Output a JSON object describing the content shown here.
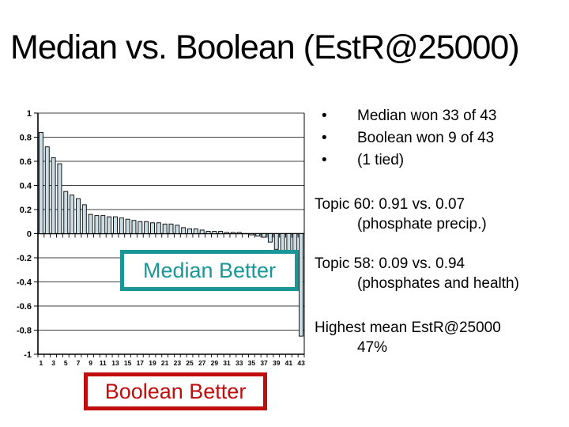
{
  "title": "Median vs. Boolean (EstR@25000)",
  "colors": {
    "teal": "#1A9696",
    "red": "#C00D0D",
    "bar_fill": "#C9DDE4",
    "bar_stroke": "#000000",
    "axis": "#000000",
    "text": "#000000"
  },
  "chart_data": {
    "type": "bar",
    "title": "",
    "xlabel": "",
    "ylabel": "",
    "ylim": [
      -1,
      1
    ],
    "ytick_interval": 0.2,
    "ytick_labels": [
      "1",
      "0.8",
      "0.6",
      "0.4",
      "0.2",
      "0",
      "-0.2",
      "-0.4",
      "-0.6",
      "-0.8",
      "-1"
    ],
    "xtick_labels": [
      "1",
      "3",
      "5",
      "7",
      "9",
      "11",
      "13",
      "15",
      "17",
      "19",
      "21",
      "23",
      "25",
      "27",
      "29",
      "31",
      "33",
      "35",
      "37",
      "39",
      "41",
      "43"
    ],
    "grid": true,
    "legend": "none",
    "categories": [
      1,
      2,
      3,
      4,
      5,
      6,
      7,
      8,
      9,
      10,
      11,
      12,
      13,
      14,
      15,
      16,
      17,
      18,
      19,
      20,
      21,
      22,
      23,
      24,
      25,
      26,
      27,
      28,
      29,
      30,
      31,
      32,
      33,
      34,
      35,
      36,
      37,
      38,
      39,
      40,
      41,
      42,
      43
    ],
    "values": [
      0.84,
      0.72,
      0.63,
      0.58,
      0.35,
      0.32,
      0.29,
      0.24,
      0.16,
      0.15,
      0.15,
      0.14,
      0.14,
      0.13,
      0.12,
      0.11,
      0.1,
      0.1,
      0.09,
      0.09,
      0.08,
      0.08,
      0.07,
      0.05,
      0.04,
      0.04,
      0.03,
      0.02,
      0.02,
      0.02,
      0.01,
      0.01,
      0.01,
      0.0,
      -0.01,
      -0.02,
      -0.03,
      -0.07,
      -0.13,
      -0.19,
      -0.22,
      -0.27,
      -0.85
    ],
    "annotations": [
      {
        "label": "Median Better",
        "color": "#1A9696"
      },
      {
        "label": "Boolean Better",
        "color": "#C00D0D"
      }
    ]
  },
  "annotations": {
    "median_better": "Median Better",
    "boolean_better": "Boolean Better"
  },
  "sidebar": {
    "bullet_char": "•",
    "bullets": [
      "Median won 33 of 43",
      "Boolean won 9 of 43",
      "(1 tied)"
    ],
    "topic60": {
      "line1": "Topic 60: 0.91 vs. 0.07",
      "line2": "(phosphate precip.)"
    },
    "topic58": {
      "line1": "Topic 58: 0.09 vs. 0.94",
      "line2": "(phosphates and health)"
    },
    "highest": {
      "line1": "Highest mean EstR@25000",
      "line2": "47%"
    }
  }
}
